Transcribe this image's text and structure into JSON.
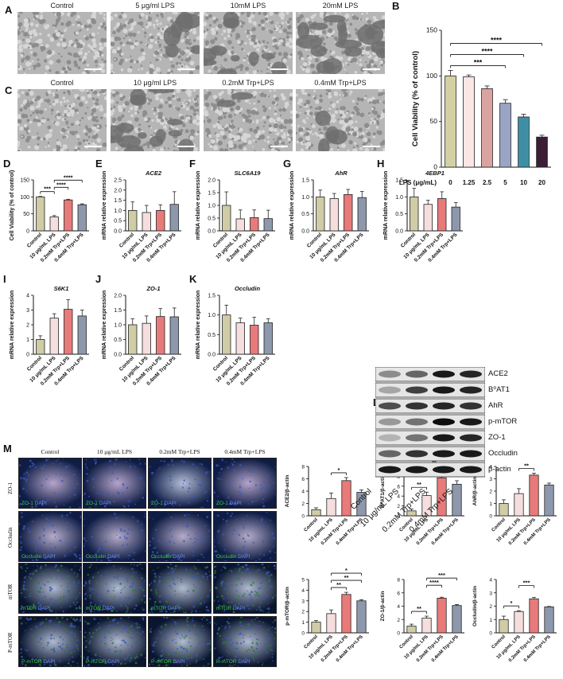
{
  "panels": {
    "A": {
      "letter": "A",
      "labels": [
        "Control",
        "5 μg/ml LPS",
        "10mM LPS",
        "20mM LPS"
      ]
    },
    "C": {
      "letter": "C",
      "labels": [
        "Control",
        "10 μg/ml LPS",
        "0.2mM Trp+LPS",
        "0.4mM Trp+LPS"
      ]
    },
    "L": {
      "letter": "L",
      "bands": [
        "ACE2",
        "B⁰AT1",
        "AhR",
        "p-mTOR",
        "ZO-1",
        "Occludin",
        "β-actin"
      ],
      "lanes": [
        "Control",
        "10 μg/mL LPS",
        "0.2mM Trp+LPS",
        "0.4mM Trp+LPS"
      ]
    },
    "M": {
      "letter": "M",
      "columns": [
        "Control",
        "10 μg/mL LPS",
        "0.2mM Trp+LPS",
        "0.4mM Trp+LPS"
      ],
      "rows": [
        "ZO-1",
        "Occludin",
        "mTOR",
        "P-mTOR"
      ],
      "stain_markers": [
        "ZO-1",
        "Occludin",
        "mTOR",
        "P-mTOR"
      ],
      "dapi": "DAPI"
    }
  },
  "colors": {
    "c1": "#cfcca6",
    "c2": "#f6dede",
    "c3": "#e87a7a",
    "c4": "#8e98ad",
    "b1": "#d4d0a4",
    "b2": "#fbe6e6",
    "b3": "#dba39f",
    "b4": "#9aa4c4",
    "b5": "#3e8fa5",
    "b6": "#3b1e35"
  },
  "chart_data": [
    {
      "id": "B",
      "letter": "B",
      "type": "bar",
      "categories": [
        "0",
        "1.25",
        "2.5",
        "5",
        "10",
        "20"
      ],
      "values": [
        100,
        99,
        86,
        70,
        55,
        33
      ],
      "errors": [
        6,
        2,
        3,
        4,
        3,
        2
      ],
      "ylabel": "Cell Viability (% of control)",
      "xlabel": "LPS  (μg/mL)",
      "ylim": [
        0,
        150
      ],
      "yticks": [
        0,
        50,
        100,
        150
      ],
      "sig": [
        {
          "from": 0,
          "to": 3,
          "label": "***"
        },
        {
          "from": 0,
          "to": 4,
          "label": "****"
        },
        {
          "from": 0,
          "to": 5,
          "label": "****"
        }
      ]
    },
    {
      "id": "D",
      "letter": "D",
      "type": "bar",
      "categories": [
        "Control",
        "10 μg/mL LPS",
        "0.2mM Trp+LPS",
        "0.4mM Trp+LPS"
      ],
      "values": [
        100,
        41,
        91,
        77
      ],
      "errors": [
        1.5,
        4,
        2,
        2.5
      ],
      "ylabel": "Cell Viability (% of control)",
      "ylim": [
        0,
        150
      ],
      "yticks": [
        0,
        50,
        100,
        150
      ],
      "sig": [
        {
          "from": 0,
          "to": 1,
          "label": "***"
        },
        {
          "from": 1,
          "to": 2,
          "label": "****"
        },
        {
          "from": 1,
          "to": 3,
          "label": "****"
        }
      ]
    },
    {
      "id": "E",
      "letter": "E",
      "type": "bar",
      "title": "ACE2",
      "categories": [
        "Control",
        "10 μg/mL LPS",
        "0.2mM Trp+LPS",
        "0.4mM Trp+LPS"
      ],
      "values": [
        1.0,
        0.9,
        1.0,
        1.3
      ],
      "errors": [
        0.42,
        0.35,
        0.28,
        0.62
      ],
      "ylabel": "mRNA relative expression",
      "ylim": [
        0,
        2.5
      ],
      "yticks": [
        0.0,
        0.5,
        1.0,
        1.5,
        2.0,
        2.5
      ],
      "sig": []
    },
    {
      "id": "F",
      "letter": "F",
      "type": "bar",
      "title": "SLC6A19",
      "categories": [
        "Control",
        "10 μg/mL LPS",
        "0.2mM Trp+LPS",
        "0.4mM Trp+LPS"
      ],
      "values": [
        1.0,
        0.47,
        0.52,
        0.48
      ],
      "errors": [
        0.53,
        0.35,
        0.3,
        0.33
      ],
      "ylabel": "mRNA relative expression",
      "ylim": [
        0,
        2.0
      ],
      "yticks": [
        0.0,
        0.5,
        1.0,
        1.5,
        2.0
      ],
      "sig": []
    },
    {
      "id": "G",
      "letter": "G",
      "type": "bar",
      "title": "AhR",
      "categories": [
        "Control",
        "10 μg/mL LPS",
        "0.2mM Trp+LPS",
        "0.4mM Trp+LPS"
      ],
      "values": [
        1.0,
        0.95,
        1.07,
        0.98
      ],
      "errors": [
        0.2,
        0.15,
        0.15,
        0.18
      ],
      "ylabel": "mRNA relative expression",
      "ylim": [
        0,
        1.5
      ],
      "yticks": [
        0.0,
        0.5,
        1.0,
        1.5
      ],
      "sig": []
    },
    {
      "id": "H",
      "letter": "H",
      "type": "bar",
      "title": "4EBP1",
      "categories": [
        "Control",
        "10 μg/mL LPS",
        "0.2mM Trp+LPS",
        "0.4mM Trp+LPS"
      ],
      "values": [
        1.0,
        0.78,
        0.95,
        0.7
      ],
      "errors": [
        0.25,
        0.12,
        0.2,
        0.13
      ],
      "ylabel": "mRNA relative expression",
      "ylim": [
        0,
        1.5
      ],
      "yticks": [
        0.0,
        0.5,
        1.0,
        1.5
      ],
      "sig": []
    },
    {
      "id": "I",
      "letter": "I",
      "type": "bar",
      "title": "S6K1",
      "categories": [
        "Control",
        "10 μg/mL LPS",
        "0.2mM Trp+LPS",
        "0.4mM Trp+LPS"
      ],
      "values": [
        1.0,
        2.45,
        3.05,
        2.6
      ],
      "errors": [
        0.25,
        0.3,
        0.65,
        0.4
      ],
      "ylabel": "mRNA relative expression",
      "ylim": [
        0,
        4
      ],
      "yticks": [
        0,
        1,
        2,
        3,
        4
      ],
      "sig": []
    },
    {
      "id": "J",
      "letter": "J",
      "type": "bar",
      "title": "ZO-1",
      "categories": [
        "Control",
        "10 μg/mL LPS",
        "0.2mM Trp+LPS",
        "0.4mM Trp+LPS"
      ],
      "values": [
        1.0,
        1.05,
        1.28,
        1.27
      ],
      "errors": [
        0.2,
        0.25,
        0.27,
        0.3
      ],
      "ylabel": "mRNA relative expression",
      "ylim": [
        0,
        2.0
      ],
      "yticks": [
        0.0,
        0.5,
        1.0,
        1.5,
        2.0
      ],
      "sig": []
    },
    {
      "id": "K",
      "letter": "K",
      "type": "bar",
      "title": "Occludin",
      "categories": [
        "Control",
        "10 μg/mL LPS",
        "0.2mM Trp+LPS",
        "0.4mM Trp+LPS"
      ],
      "values": [
        1.0,
        0.8,
        0.74,
        0.8
      ],
      "errors": [
        0.25,
        0.12,
        0.2,
        0.1
      ],
      "ylabel": "mRNA relative expression",
      "ylim": [
        0,
        1.5
      ],
      "yticks": [
        0.0,
        0.5,
        1.0,
        1.5
      ],
      "sig": []
    },
    {
      "id": "M1",
      "type": "bar",
      "categories": [
        "Control",
        "10 μg/mL LPS",
        "0.2mM Trp+LPS",
        "0.4mM Trp+LPS"
      ],
      "values": [
        1.0,
        2.8,
        5.7,
        3.8
      ],
      "errors": [
        0.3,
        0.9,
        0.5,
        0.4
      ],
      "ylabel": "ACE2/β-actin",
      "ylim": [
        0,
        8
      ],
      "yticks": [
        0,
        2,
        4,
        6,
        8
      ],
      "sig": [
        {
          "from": 1,
          "to": 2,
          "label": "*"
        }
      ]
    },
    {
      "id": "M2",
      "type": "bar",
      "categories": [
        "Control",
        "10 μg/mL LPS",
        "0.2mM Trp+LPS",
        "0.4mM Trp+LPS"
      ],
      "values": [
        1.0,
        4.1,
        7.7,
        6.4
      ],
      "errors": [
        0.4,
        0.7,
        0.2,
        0.7
      ],
      "ylabel": "B⁰AT1/β-actin",
      "ylim": [
        0,
        10
      ],
      "yticks": [
        0,
        2,
        4,
        6,
        8,
        10
      ],
      "sig": [
        {
          "from": 0,
          "to": 1,
          "label": "**"
        },
        {
          "from": 1,
          "to": 2,
          "label": "**"
        },
        {
          "from": 1,
          "to": 3,
          "label": "*"
        }
      ]
    },
    {
      "id": "M3",
      "type": "bar",
      "categories": [
        "Control",
        "10 μg/mL LPS",
        "0.2mM Trp+LPS",
        "0.4mM Trp+LPS"
      ],
      "values": [
        1.0,
        1.8,
        3.3,
        2.5
      ],
      "errors": [
        0.3,
        0.4,
        0.15,
        0.15
      ],
      "ylabel": "AhR/β-actin",
      "ylim": [
        0,
        4
      ],
      "yticks": [
        0,
        1,
        2,
        3,
        4
      ],
      "sig": [
        {
          "from": 1,
          "to": 2,
          "label": "**"
        }
      ]
    },
    {
      "id": "M4",
      "type": "bar",
      "categories": [
        "Control",
        "10 μg/mL LPS",
        "0.2mM Trp+LPS",
        "0.4mM Trp+LPS"
      ],
      "values": [
        1.0,
        1.8,
        3.6,
        3.0
      ],
      "errors": [
        0.15,
        0.35,
        0.2,
        0.1
      ],
      "ylabel": "p-mTOR/β-actin",
      "ylim": [
        0,
        5
      ],
      "yticks": [
        0,
        1,
        2,
        3,
        4,
        5
      ],
      "sig": [
        {
          "from": 1,
          "to": 2,
          "label": "**"
        },
        {
          "from": 1,
          "to": 3,
          "label": "**"
        },
        {
          "from": 1,
          "to": 3,
          "label": "*"
        }
      ]
    },
    {
      "id": "M5",
      "type": "bar",
      "categories": [
        "Control",
        "10 μg/mL LPS",
        "0.2mM Trp+LPS",
        "0.4mM Trp+LPS"
      ],
      "values": [
        1.0,
        2.2,
        5.2,
        4.1
      ],
      "errors": [
        0.3,
        0.3,
        0.15,
        0.15
      ],
      "ylabel": "ZO-1/β-actin",
      "ylim": [
        0,
        8
      ],
      "yticks": [
        0,
        2,
        4,
        6,
        8
      ],
      "sig": [
        {
          "from": 0,
          "to": 1,
          "label": "**"
        },
        {
          "from": 1,
          "to": 2,
          "label": "****"
        },
        {
          "from": 1,
          "to": 3,
          "label": "***"
        }
      ]
    },
    {
      "id": "M6",
      "type": "bar",
      "categories": [
        "Control",
        "10 μg/mL LPS",
        "0.2mM Trp+LPS",
        "0.4mM Trp+LPS"
      ],
      "values": [
        1.0,
        1.6,
        2.55,
        1.95
      ],
      "errors": [
        0.25,
        0.06,
        0.1,
        0.03
      ],
      "ylabel": "Occludin/β-actin",
      "ylim": [
        0,
        4
      ],
      "yticks": [
        0,
        1,
        2,
        3,
        4
      ],
      "sig": [
        {
          "from": 0,
          "to": 1,
          "label": "*"
        },
        {
          "from": 1,
          "to": 2,
          "label": "***"
        }
      ]
    }
  ]
}
